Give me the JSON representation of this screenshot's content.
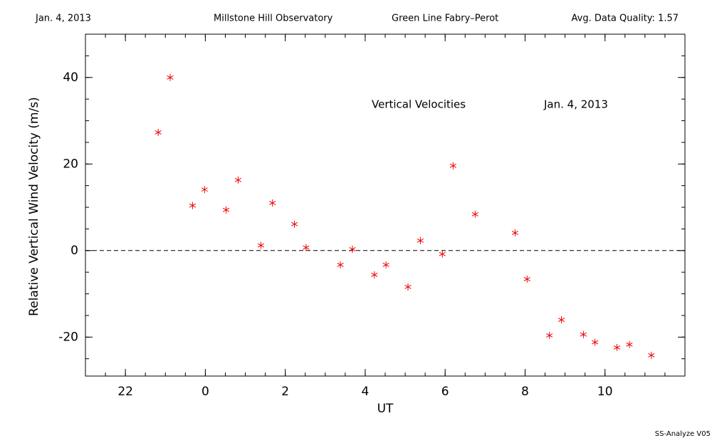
{
  "header": {
    "date": "Jan. 4, 2013",
    "observatory": "Millstone Hill Observatory",
    "instrument": "Green Line Fabry–Perot",
    "quality": "Avg. Data Quality: 1.57"
  },
  "footer": "SS-Analyze V05",
  "chart_data": {
    "type": "scatter",
    "annotations": [
      "Vertical Velocities",
      "Jan. 4, 2013"
    ],
    "x_label": "UT",
    "y_label": "Relative Vertical Wind Velocity (m/s)",
    "x": [
      22.82,
      23.12,
      23.68,
      23.98,
      24.52,
      24.82,
      25.39,
      25.68,
      26.23,
      26.52,
      27.38,
      27.68,
      28.23,
      28.52,
      29.07,
      29.38,
      29.93,
      30.2,
      30.75,
      31.75,
      32.05,
      32.61,
      32.91,
      33.46,
      33.75,
      34.3,
      34.61,
      35.16
    ],
    "series": [
      {
        "name": "Vertical Velocities",
        "color": "#ee0000",
        "values": [
          27.3,
          40,
          10.4,
          14.1,
          9.4,
          16.3,
          1.2,
          11.0,
          6.1,
          0.7,
          -3.3,
          0.3,
          -5.6,
          -3.3,
          -8.4,
          2.3,
          -0.8,
          19.6,
          8.4,
          4.1,
          -6.6,
          -19.6,
          -16.0,
          -19.4,
          -21.2,
          -22.4,
          -21.7,
          -24.2
        ]
      }
    ],
    "xlim": [
      21,
      36
    ],
    "xticks": [
      22,
      {
        "value": 24,
        "label": "0"
      },
      {
        "value": 26,
        "label": "2"
      },
      {
        "value": 28,
        "label": "4"
      },
      {
        "value": 30,
        "label": "6"
      },
      {
        "value": 32,
        "label": "8"
      },
      {
        "value": 34,
        "label": "10"
      }
    ],
    "ylim": [
      -29,
      50
    ],
    "yticks": [
      -20,
      0,
      20,
      40
    ]
  }
}
